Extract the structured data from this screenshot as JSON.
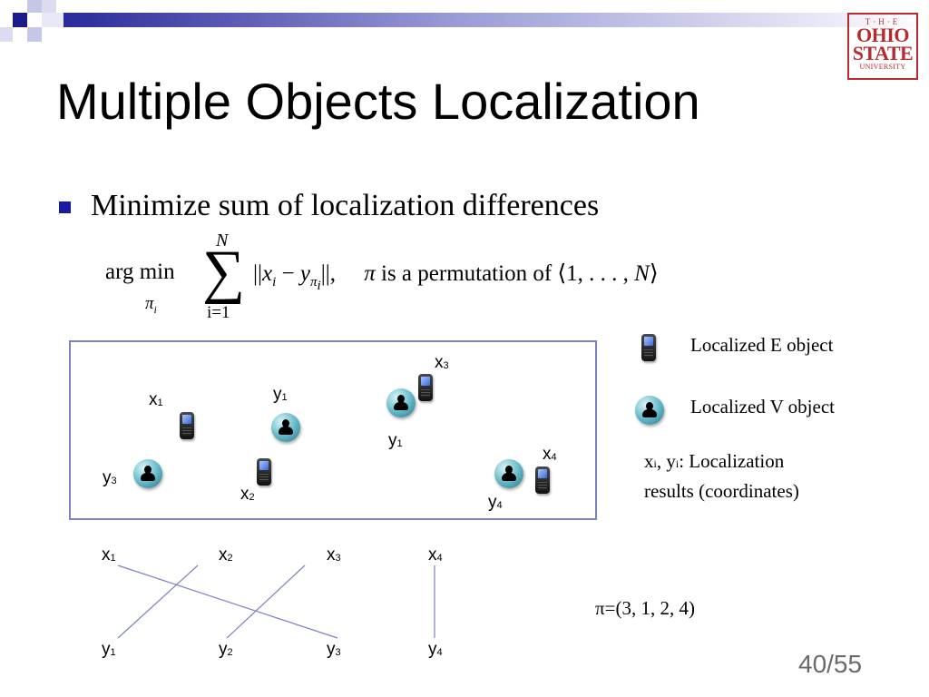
{
  "title": "Multiple Objects Localization",
  "bullet": "Minimize sum of localization differences",
  "logo": {
    "line1": "T·H·E",
    "line2": "OHIO",
    "line3": "STATE",
    "line4": "UNIVERSITY"
  },
  "formula": {
    "arg": "arg min",
    "sub_var": "π",
    "sub_idx": "i",
    "sum_upper": "N",
    "sum_lower": "i=1",
    "norm_open": "||",
    "x": "x",
    "x_idx": "i",
    "minus": " − ",
    "y": "y",
    "y_sub": "π",
    "y_subsub": "i",
    "norm_close": "||,",
    "pi": "π",
    "rest": " is a permutation of ⟨1, . . . , ",
    "N": "N",
    "close_angle": "⟩"
  },
  "box_labels": [
    {
      "id": "x1",
      "letter": "x",
      "idx": "1"
    },
    {
      "id": "y1a",
      "letter": "y",
      "idx": "1"
    },
    {
      "id": "x3",
      "letter": "x",
      "idx": "3"
    },
    {
      "id": "y1b",
      "letter": "y",
      "idx": "1"
    },
    {
      "id": "x4",
      "letter": "x",
      "idx": "4"
    },
    {
      "id": "y3",
      "letter": "y",
      "idx": "3"
    },
    {
      "id": "x2",
      "letter": "x",
      "idx": "2"
    },
    {
      "id": "y4",
      "letter": "y",
      "idx": "4"
    }
  ],
  "legend": {
    "e_object": "Localized E object",
    "v_object": "Localized V object",
    "coords_x": "x",
    "coords_x_idx": "i",
    "coords_sep": ", ",
    "coords_y": "y",
    "coords_y_idx": "i",
    "coords_line1_rest": ": Localization",
    "coords_line2": "results (coordinates)"
  },
  "matching": {
    "top": [
      {
        "letter": "x",
        "idx": "1"
      },
      {
        "letter": "x",
        "idx": "2"
      },
      {
        "letter": "x",
        "idx": "3"
      },
      {
        "letter": "x",
        "idx": "4"
      }
    ],
    "bottom": [
      {
        "letter": "y",
        "idx": "1"
      },
      {
        "letter": "y",
        "idx": "2"
      },
      {
        "letter": "y",
        "idx": "3"
      },
      {
        "letter": "y",
        "idx": "4"
      }
    ],
    "permutation": [
      3,
      1,
      2,
      4
    ],
    "line_color": "#7b82bf"
  },
  "permutation_text": "π=(3, 1, 2, 4)",
  "page_number": "40/55",
  "colors": {
    "accent": "#1a1aa0",
    "logo": "#b72b2f",
    "box_border": "#7b82bf"
  }
}
